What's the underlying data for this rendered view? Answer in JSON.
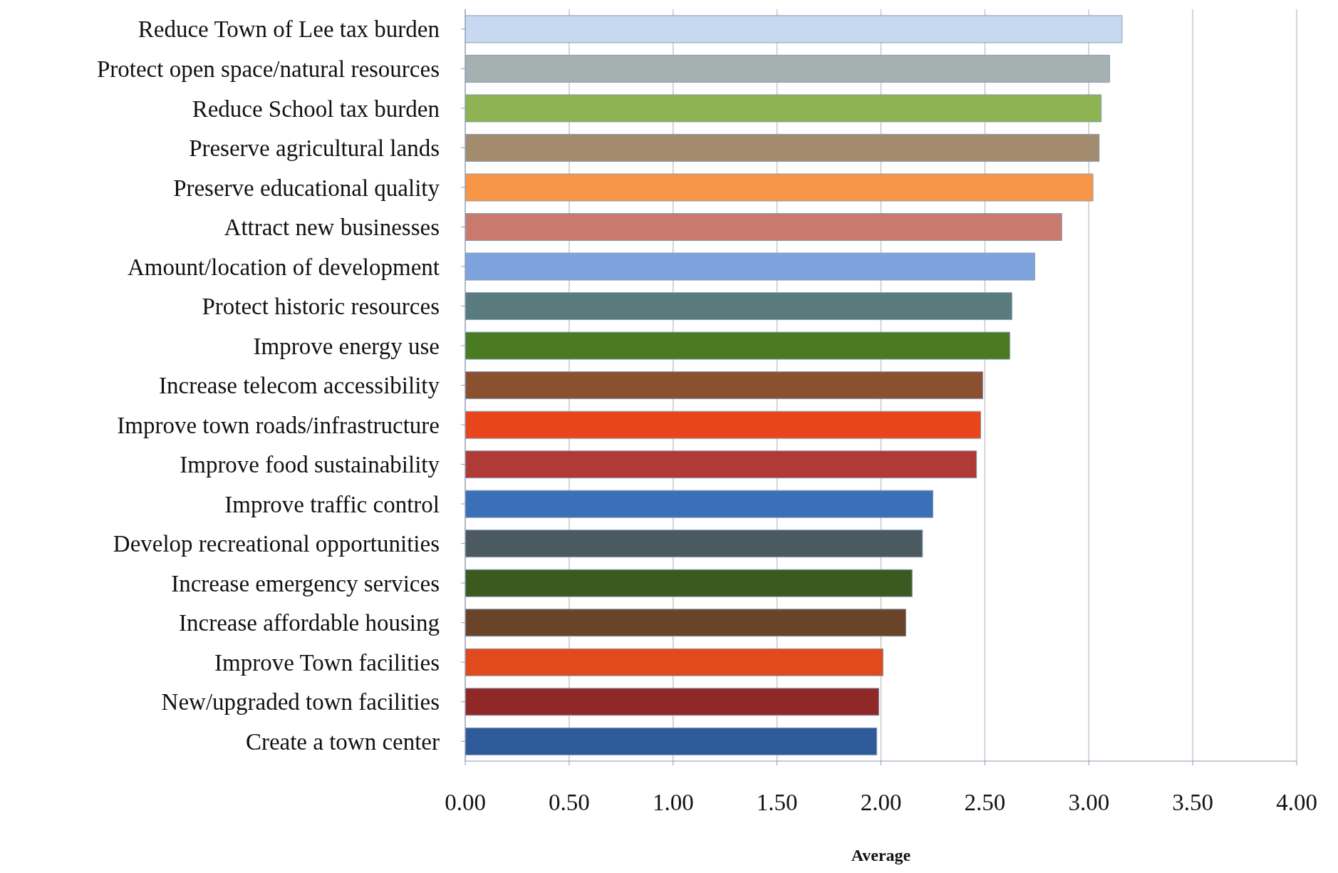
{
  "chart_data": {
    "type": "bar",
    "orientation": "horizontal",
    "xlabel": "Average",
    "categories": [
      "Reduce Town of Lee tax burden",
      "Protect open space/natural resources",
      "Reduce School tax burden",
      "Preserve agricultural lands",
      "Preserve educational quality",
      "Attract new businesses",
      "Amount/location of development",
      "Protect historic resources",
      "Improve energy use",
      "Increase telecom accessibility",
      "Improve town roads/infrastructure",
      "Improve food sustainability",
      "Improve traffic control",
      "Develop recreational opportunities",
      "Increase emergency services",
      "Increase affordable housing",
      "Improve Town facilities",
      "New/upgraded town facilities",
      "Create a town center"
    ],
    "values": [
      3.16,
      3.1,
      3.06,
      3.05,
      3.02,
      2.87,
      2.74,
      2.63,
      2.62,
      2.49,
      2.48,
      2.46,
      2.25,
      2.2,
      2.15,
      2.12,
      2.01,
      1.99,
      1.98
    ],
    "colors": [
      "#c6d9f1",
      "#a5b0b0",
      "#8db352",
      "#a38b6d",
      "#f79646",
      "#c97a6e",
      "#7ea3dc",
      "#5a7b7e",
      "#4a7a22",
      "#8a5030",
      "#e8461a",
      "#b03a35",
      "#3a70b8",
      "#4a5a60",
      "#3a5a20",
      "#6a4428",
      "#e04a1c",
      "#902828",
      "#2f5a9a"
    ],
    "xlim": [
      0,
      4
    ],
    "xticks": [
      {
        "value": 0,
        "label": "0.00"
      },
      {
        "value": 0.5,
        "label": "0.50"
      },
      {
        "value": 1,
        "label": "1.00"
      },
      {
        "value": 1.5,
        "label": "1.50"
      },
      {
        "value": 2,
        "label": "2.00"
      },
      {
        "value": 2.5,
        "label": "2.50"
      },
      {
        "value": 3,
        "label": "3.00"
      },
      {
        "value": 3.5,
        "label": "3.50"
      },
      {
        "value": 4,
        "label": "4.00"
      }
    ],
    "grid": "x"
  }
}
